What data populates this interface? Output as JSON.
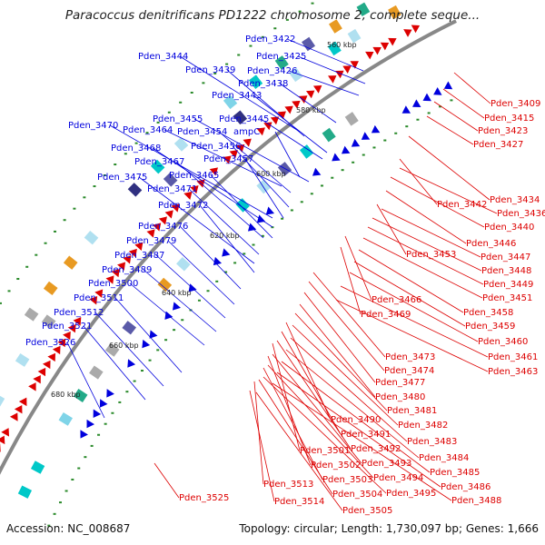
{
  "title": "Paracoccus denitrificans PD1222 chromosome 2, complete seque...",
  "footer": {
    "accession": "Accession: NC_008687",
    "summary": "Topology: circular; Length: 1,730,097 bp; Genes: 1,666"
  },
  "colors": {
    "forward": "#0000dd",
    "reverse": "#dd0000",
    "backbone": "#888888",
    "dot": "#2a8a2a"
  },
  "ticks": [
    "560 kbp",
    "580 kbp",
    "600 kbp",
    "620 kbp",
    "640 kbp",
    "660 kbp",
    "680 kbp"
  ],
  "blue_labels": [
    "Pden_3422",
    "Pden_3425",
    "Pden_3426",
    "Pden_3444",
    "Pden_3439",
    "Pden_3438",
    "Pden_3443",
    "Pden_3445",
    "Pden_3455",
    "Pden_3470",
    "Pden_3464",
    "Pden_3454",
    "ampC",
    "Pden_3468",
    "Pden_3456",
    "Pden_3467",
    "Pden_3457",
    "Pden_3475",
    "Pden_3465",
    "Pden_3471",
    "Pden_3472",
    "Pden_3476",
    "Pden_3479",
    "Pden_3487",
    "Pden_3489",
    "Pden_3500",
    "Pden_3511",
    "Pden_3512",
    "Pden_3521",
    "Pden_3526"
  ],
  "red_labels": [
    "Pden_3409",
    "Pden_3415",
    "Pden_3423",
    "Pden_3427",
    "Pden_3434",
    "Pden_3442",
    "Pden_3436",
    "Pden_3440",
    "Pden_3446",
    "Pden_3453",
    "Pden_3447",
    "Pden_3448",
    "Pden_3449",
    "Pden_3451",
    "Pden_3466",
    "Pden_3458",
    "Pden_3469",
    "Pden_3459",
    "Pden_3460",
    "Pden_3461",
    "Pden_3473",
    "Pden_3463",
    "Pden_3474",
    "Pden_3477",
    "Pden_3480",
    "Pden_3481",
    "Pden_3490",
    "Pden_3482",
    "Pden_3491",
    "Pden_3483",
    "Pden_3492",
    "Pden_3501",
    "Pden_3484",
    "Pden_3493",
    "Pden_3502",
    "Pden_3485",
    "Pden_3494",
    "Pden_3503",
    "Pden_3486",
    "Pden_3495",
    "Pden_3504",
    "Pden_3513",
    "Pden_3488",
    "Pden_3525",
    "Pden_3514",
    "Pden_3505"
  ]
}
